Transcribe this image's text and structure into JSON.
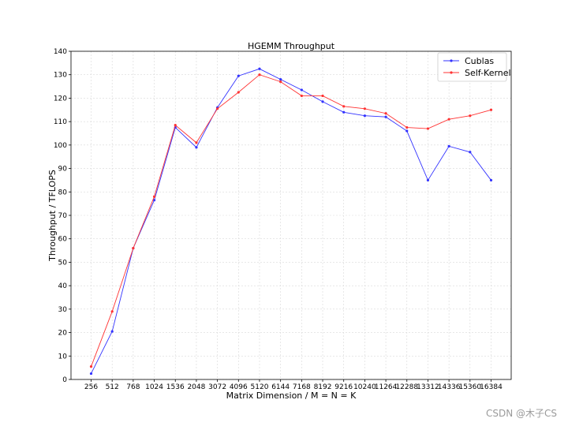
{
  "watermark": "CSDN @木子CS",
  "chart_data": {
    "type": "line",
    "title": "HGEMM Throughput",
    "xlabel": "Matrix Dimension / M = N = K",
    "ylabel": "Throughput / TFLOPS",
    "categories": [
      "256",
      "512",
      "768",
      "1024",
      "1536",
      "2048",
      "3072",
      "4096",
      "5120",
      "6144",
      "7168",
      "8192",
      "9216",
      "10240",
      "11264",
      "12288",
      "13312",
      "14336",
      "15360",
      "16384"
    ],
    "ylim": [
      0,
      140
    ],
    "yticks": [
      0,
      10,
      20,
      30,
      40,
      50,
      60,
      70,
      80,
      90,
      100,
      110,
      120,
      130,
      140
    ],
    "grid": true,
    "legend_position": "top-right",
    "series": [
      {
        "name": "Cublas",
        "color": "#3333ff",
        "values": [
          2.5,
          20.5,
          56,
          76.5,
          107.5,
          99,
          116,
          129.5,
          132.5,
          128,
          123.5,
          118.5,
          114,
          112.5,
          112,
          106,
          85,
          99.5,
          97,
          85
        ]
      },
      {
        "name": "Self-Kernel",
        "color": "#ff3333",
        "values": [
          5.5,
          29,
          56,
          78,
          108.5,
          101,
          115.5,
          122.5,
          130,
          127,
          121,
          121,
          116.5,
          115.5,
          113.5,
          107.5,
          107,
          111,
          112.5,
          115
        ]
      }
    ]
  }
}
